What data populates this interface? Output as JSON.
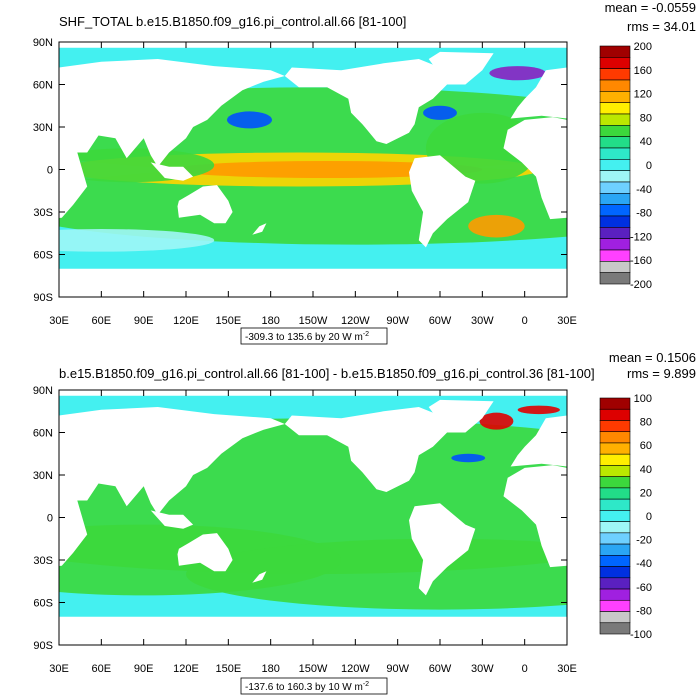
{
  "chart_data": [
    {
      "type": "heatmap",
      "title": "SHF_TOTAL b.e15.B1850.f09_g16.pi_control.all.66 [81-100]",
      "stats": {
        "mean": "mean = -0.0559",
        "rms": "rms = 34.01"
      },
      "x_ticks": [
        "30E",
        "60E",
        "90E",
        "120E",
        "150E",
        "180",
        "150W",
        "120W",
        "90W",
        "60W",
        "30W",
        "0",
        "30E"
      ],
      "y_ticks": [
        "90N",
        "60N",
        "30N",
        "0",
        "30S",
        "60S",
        "90S"
      ],
      "xlim": [
        30,
        390
      ],
      "ylim": [
        -90,
        90
      ],
      "range_label": "-309.3 to 135.6 by 20",
      "units": "W m",
      "units_exp": "-2",
      "colorbar": {
        "labels": [
          "200",
          "160",
          "120",
          "80",
          "40",
          "0",
          "-40",
          "-80",
          "-120",
          "-160",
          "-200"
        ],
        "colors": [
          "#a00000",
          "#dd0000",
          "#ff3a00",
          "#ff8800",
          "#ffb000",
          "#ffee00",
          "#bbe800",
          "#3cd83c",
          "#22dd88",
          "#2ee8c8",
          "#44f0f0",
          "#9ef6f6",
          "#6ed0ff",
          "#2aa6f4",
          "#0066ff",
          "#0030e0",
          "#5a20c0",
          "#a020e0",
          "#ff40ff",
          "#c8c8c8",
          "#7a7a7a"
        ]
      }
    },
    {
      "type": "heatmap",
      "title": "b.e15.B1850.f09_g16.pi_control.all.66 [81-100] - b.e15.B1850.f09_g16.pi_control.36 [81-100]",
      "stats": {
        "mean": "mean = 0.1506",
        "rms": "rms = 9.899"
      },
      "x_ticks": [
        "30E",
        "60E",
        "90E",
        "120E",
        "150E",
        "180",
        "150W",
        "120W",
        "90W",
        "60W",
        "30W",
        "0",
        "30E"
      ],
      "y_ticks": [
        "90N",
        "60N",
        "30N",
        "0",
        "30S",
        "60S",
        "90S"
      ],
      "xlim": [
        30,
        390
      ],
      "ylim": [
        -90,
        90
      ],
      "range_label": "-137.6 to 160.3 by 10",
      "units": "W m",
      "units_exp": "-2",
      "colorbar": {
        "labels": [
          "100",
          "80",
          "60",
          "40",
          "20",
          "0",
          "-20",
          "-40",
          "-60",
          "-80",
          "-100"
        ],
        "colors": [
          "#a00000",
          "#dd0000",
          "#ff3a00",
          "#ff8800",
          "#ffb000",
          "#ffee00",
          "#bbe800",
          "#3cd83c",
          "#22dd88",
          "#2ee8c8",
          "#44f0f0",
          "#9ef6f6",
          "#6ed0ff",
          "#2aa6f4",
          "#0066ff",
          "#0030e0",
          "#5a20c0",
          "#a020e0",
          "#ff40ff",
          "#c8c8c8",
          "#7a7a7a"
        ]
      }
    }
  ],
  "colors": {
    "land": "#ffffff",
    "ocean_base_top": "#38e8c0",
    "ocean_base_bottom": "#2ae6a0",
    "green": "#3cd83c",
    "cyan": "#44f0f0",
    "orange": "#ff9a00",
    "yellow": "#ffd400",
    "red": "#e00000",
    "blue": "#0050ff",
    "purple": "#8a20c0"
  }
}
